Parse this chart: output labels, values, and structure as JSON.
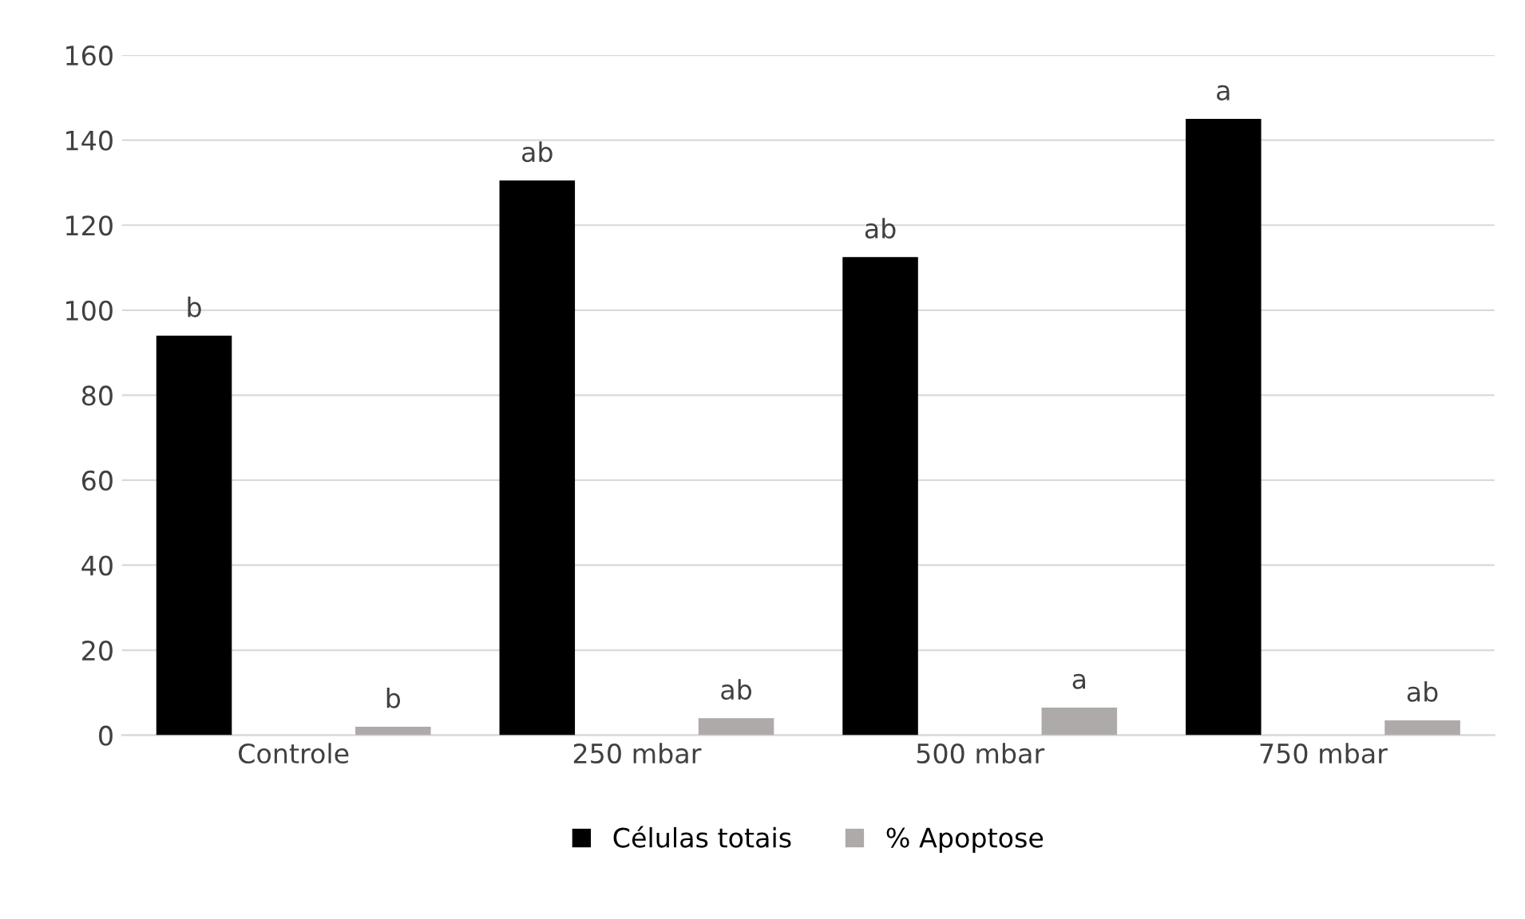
{
  "chart_data": {
    "type": "bar",
    "categories": [
      "Controle",
      "250 mbar",
      "500 mbar",
      "750 mbar"
    ],
    "series": [
      {
        "name": "Células totais",
        "color": "#000000",
        "values": [
          94,
          130.5,
          112.5,
          145
        ],
        "value_labels": [
          "b",
          "ab",
          "ab",
          "a"
        ]
      },
      {
        "name": "% Apoptose",
        "color": "#aeaaaa",
        "values": [
          2,
          4,
          6.5,
          3.5
        ],
        "value_labels": [
          "b",
          "ab",
          "a",
          "ab"
        ]
      }
    ],
    "ylim": [
      0,
      160
    ],
    "yticks": [
      0,
      20,
      40,
      60,
      80,
      100,
      120,
      140,
      160
    ],
    "grid": "y",
    "legend": "bottom"
  }
}
